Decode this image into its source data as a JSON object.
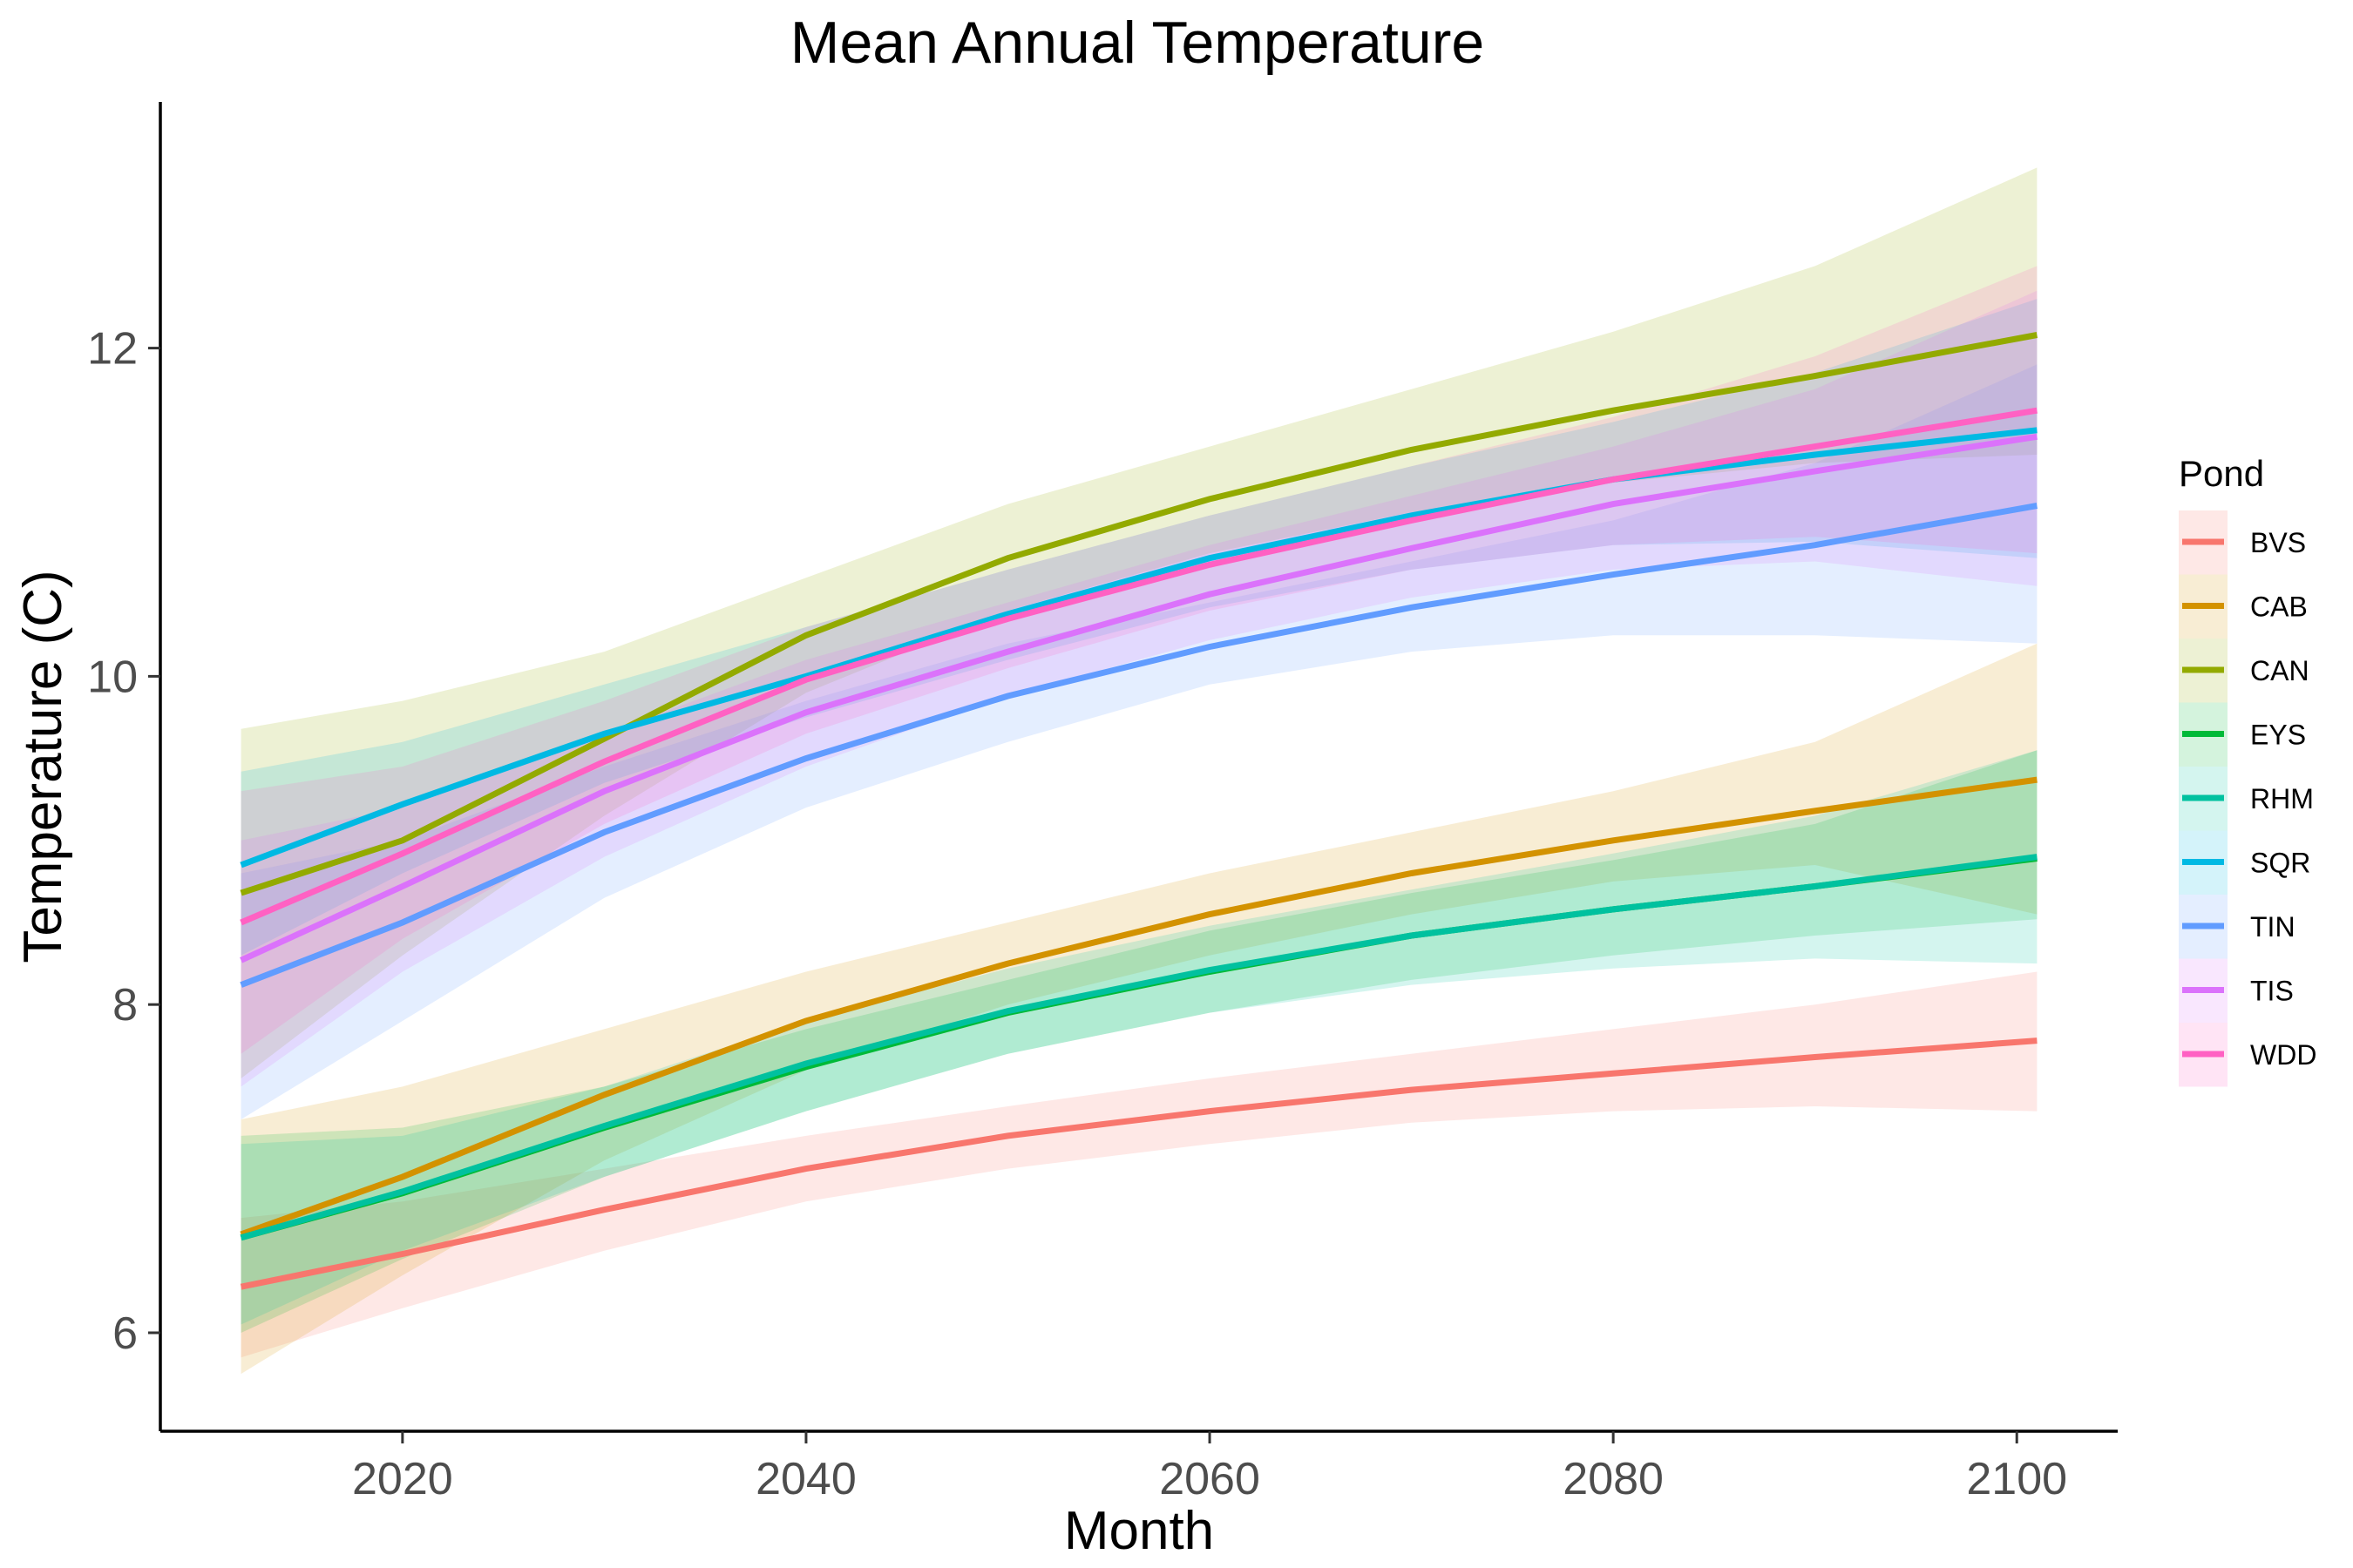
{
  "chart_data": {
    "type": "line",
    "title": "Mean Annual Temperature",
    "xlabel": "Month",
    "ylabel": "Temperature (C)",
    "xlim": [
      2008,
      2105
    ],
    "ylim": [
      5.4,
      13.5
    ],
    "xticks": [
      2020,
      2040,
      2060,
      2080,
      2100
    ],
    "yticks": [
      6,
      8,
      10,
      12
    ],
    "grid": false,
    "legend": {
      "title": "Pond",
      "placement": "right"
    },
    "x": [
      2012,
      2020,
      2030,
      2040,
      2050,
      2060,
      2070,
      2080,
      2090,
      2101
    ],
    "series": [
      {
        "name": "BVS",
        "color": "#F8766D",
        "values": [
          6.28,
          6.48,
          6.75,
          7.0,
          7.2,
          7.35,
          7.48,
          7.58,
          7.68,
          7.78
        ],
        "lower": [
          5.85,
          6.15,
          6.5,
          6.8,
          7.0,
          7.15,
          7.28,
          7.35,
          7.38,
          7.35
        ],
        "upper": [
          6.7,
          6.8,
          7.0,
          7.2,
          7.38,
          7.55,
          7.7,
          7.85,
          8.0,
          8.2
        ]
      },
      {
        "name": "CAB",
        "color": "#D39200",
        "values": [
          6.6,
          6.95,
          7.45,
          7.9,
          8.25,
          8.55,
          8.8,
          9.0,
          9.18,
          9.37
        ],
        "lower": [
          5.75,
          6.35,
          7.05,
          7.6,
          8.0,
          8.3,
          8.55,
          8.75,
          8.85,
          8.55
        ],
        "upper": [
          7.3,
          7.5,
          7.85,
          8.2,
          8.5,
          8.8,
          9.05,
          9.3,
          9.6,
          10.2
        ]
      },
      {
        "name": "CAN",
        "color": "#93AA00",
        "values": [
          8.68,
          9.0,
          9.62,
          10.25,
          10.72,
          11.08,
          11.38,
          11.62,
          11.83,
          12.08
        ],
        "lower": [
          7.55,
          8.3,
          9.15,
          9.9,
          10.4,
          10.75,
          11.0,
          11.18,
          11.3,
          11.35
        ],
        "upper": [
          9.68,
          9.85,
          10.15,
          10.6,
          11.05,
          11.4,
          11.75,
          12.1,
          12.5,
          13.1
        ]
      },
      {
        "name": "EYS",
        "color": "#00BA38",
        "values": [
          6.58,
          6.85,
          7.25,
          7.62,
          7.95,
          8.2,
          8.42,
          8.58,
          8.72,
          8.89
        ],
        "lower": [
          6.0,
          6.45,
          6.95,
          7.35,
          7.7,
          7.95,
          8.15,
          8.3,
          8.42,
          8.52
        ],
        "upper": [
          7.2,
          7.25,
          7.5,
          7.85,
          8.15,
          8.45,
          8.68,
          8.88,
          9.1,
          9.55
        ]
      },
      {
        "name": "RHM",
        "color": "#00C19F",
        "values": [
          6.58,
          6.86,
          7.26,
          7.64,
          7.96,
          8.21,
          8.42,
          8.58,
          8.72,
          8.9
        ],
        "lower": [
          6.05,
          6.5,
          6.95,
          7.35,
          7.7,
          7.95,
          8.12,
          8.22,
          8.28,
          8.25
        ],
        "upper": [
          7.15,
          7.2,
          7.5,
          7.9,
          8.22,
          8.48,
          8.7,
          8.92,
          9.15,
          9.55
        ]
      },
      {
        "name": "SQR",
        "color": "#00B9E3",
        "values": [
          8.85,
          9.22,
          9.65,
          10.0,
          10.38,
          10.72,
          10.98,
          11.2,
          11.35,
          11.5
        ],
        "lower": [
          8.3,
          8.8,
          9.35,
          9.75,
          10.1,
          10.42,
          10.65,
          10.8,
          10.82,
          10.72
        ],
        "upper": [
          9.42,
          9.6,
          9.95,
          10.3,
          10.65,
          10.98,
          11.28,
          11.55,
          11.85,
          12.3
        ]
      },
      {
        "name": "TIN",
        "color": "#619CFF",
        "values": [
          8.12,
          8.5,
          9.05,
          9.5,
          9.88,
          10.18,
          10.42,
          10.62,
          10.8,
          11.04
        ],
        "lower": [
          7.3,
          7.9,
          8.65,
          9.2,
          9.6,
          9.95,
          10.15,
          10.25,
          10.25,
          10.2
        ],
        "upper": [
          8.8,
          9.0,
          9.45,
          9.85,
          10.2,
          10.45,
          10.7,
          10.95,
          11.3,
          11.9
        ]
      },
      {
        "name": "TIS",
        "color": "#DB72FB",
        "values": [
          8.27,
          8.72,
          9.3,
          9.78,
          10.15,
          10.5,
          10.78,
          11.05,
          11.25,
          11.46
        ],
        "lower": [
          7.5,
          8.2,
          8.9,
          9.45,
          9.88,
          10.22,
          10.48,
          10.65,
          10.7,
          10.55
        ],
        "upper": [
          9.0,
          9.2,
          9.65,
          10.1,
          10.45,
          10.8,
          11.1,
          11.4,
          11.75,
          12.35
        ]
      },
      {
        "name": "WDD",
        "color": "#FF61C3",
        "values": [
          8.5,
          8.92,
          9.48,
          9.98,
          10.35,
          10.68,
          10.95,
          11.2,
          11.4,
          11.62
        ],
        "lower": [
          7.7,
          8.4,
          9.1,
          9.65,
          10.05,
          10.4,
          10.65,
          10.8,
          10.85,
          10.75
        ],
        "upper": [
          9.3,
          9.45,
          9.85,
          10.3,
          10.65,
          10.98,
          11.28,
          11.58,
          11.95,
          12.5
        ]
      }
    ]
  }
}
